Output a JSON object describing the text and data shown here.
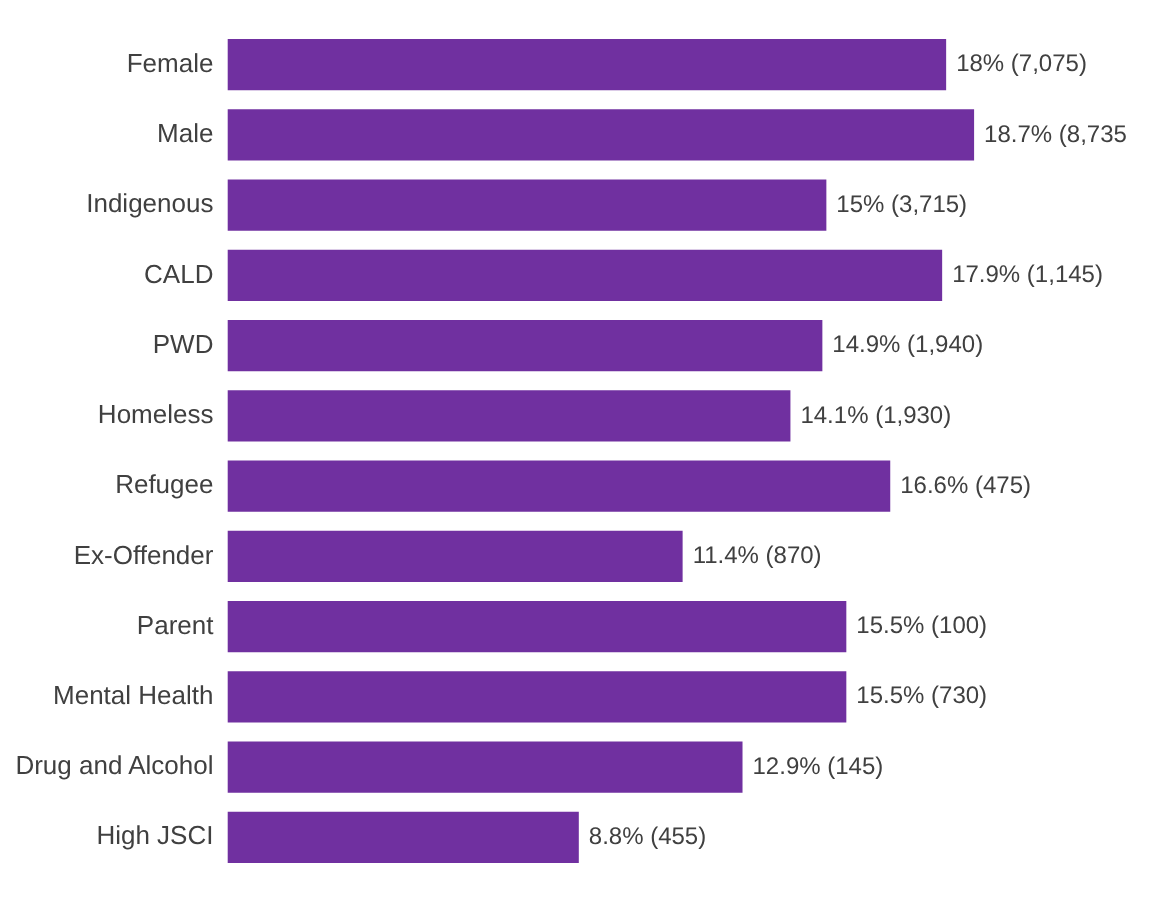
{
  "chart_data": {
    "type": "bar",
    "orientation": "horizontal",
    "categories": [
      "Female",
      "Male",
      "Indigenous",
      "CALD",
      "PWD",
      "Homeless",
      "Refugee",
      "Ex-Offender",
      "Parent",
      "Mental Health",
      "Drug and Alcohol",
      "High JSCI"
    ],
    "values": [
      18,
      18.7,
      15,
      17.9,
      14.9,
      14.1,
      16.6,
      11.4,
      15.5,
      15.5,
      12.9,
      8.8
    ],
    "value_labels": [
      "18% (7,075)",
      "18.7% (8,735",
      "15% (3,715)",
      "17.9% (1,145)",
      "14.9% (1,940)",
      "14.1% (1,930)",
      "16.6% (475)",
      "11.4% (870)",
      "15.5% (100)",
      "15.5% (730)",
      "12.9% (145)",
      "8.8% (455)"
    ],
    "color": "#7030a0",
    "legend": false,
    "tick_labels": "y"
  }
}
